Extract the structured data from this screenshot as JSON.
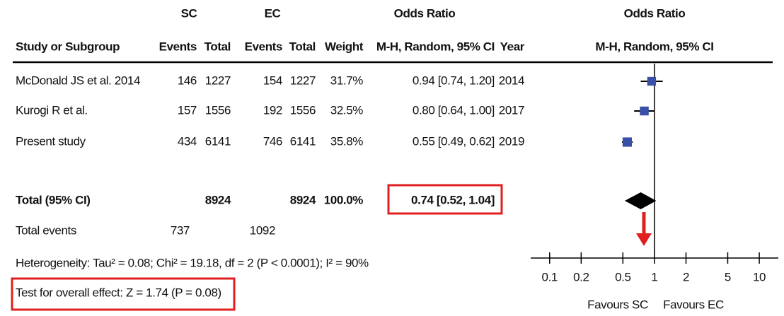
{
  "chart_data": {
    "type": "forest",
    "headers": {
      "sc": "SC",
      "ec": "EC",
      "or_table": "Odds Ratio",
      "or_plot": "Odds Ratio",
      "study": "Study or Subgroup",
      "sc_events": "Events",
      "sc_total": "Total",
      "ec_events": "Events",
      "ec_total": "Total",
      "weight": "Weight",
      "method_table": "M-H, Random, 95% CI",
      "year": "Year",
      "method_plot": "M-H, Random, 95% CI"
    },
    "studies": [
      {
        "name": "McDonald JS et al. 2014",
        "sc_events": 146,
        "sc_total": 1227,
        "ec_events": 154,
        "ec_total": 1227,
        "weight": 31.7,
        "weight_label": "31.7%",
        "or": 0.94,
        "ci_low": 0.74,
        "ci_high": 1.2,
        "ci_label": "0.94 [0.74, 1.20]",
        "year": 2014
      },
      {
        "name": "Kurogi R et al.",
        "sc_events": 157,
        "sc_total": 1556,
        "ec_events": 192,
        "ec_total": 1556,
        "weight": 32.5,
        "weight_label": "32.5%",
        "or": 0.8,
        "ci_low": 0.64,
        "ci_high": 1.0,
        "ci_label": "0.80 [0.64, 1.00]",
        "year": 2017
      },
      {
        "name": "Present study",
        "sc_events": 434,
        "sc_total": 6141,
        "ec_events": 746,
        "ec_total": 6141,
        "weight": 35.8,
        "weight_label": "35.8%",
        "or": 0.55,
        "ci_low": 0.49,
        "ci_high": 0.62,
        "ci_label": "0.55 [0.49, 0.62]",
        "year": 2019
      }
    ],
    "total": {
      "name": "Total (95% CI)",
      "sc_total": 8924,
      "ec_total": 8924,
      "weight": 100.0,
      "weight_label": "100.0%",
      "or": 0.74,
      "ci_low": 0.52,
      "ci_high": 1.04,
      "ci_label": "0.74 [0.52, 1.04]"
    },
    "total_events": {
      "name": "Total events",
      "sc_events": 737,
      "ec_events": 1092
    },
    "heterogeneity": "Heterogeneity: Tau² = 0.08; Chi² = 19.18, df = 2 (P < 0.0001); I² = 90%",
    "overall_effect": "Test for overall effect: Z = 1.74 (P = 0.08)",
    "x_log": true,
    "xlim": [
      0.066,
      15.2
    ],
    "xticks": [
      0.1,
      0.2,
      0.5,
      1,
      2,
      5,
      10
    ],
    "favours_left": "Favours SC",
    "favours_right": "Favours EC",
    "marker_color": "#3a4fa6"
  }
}
